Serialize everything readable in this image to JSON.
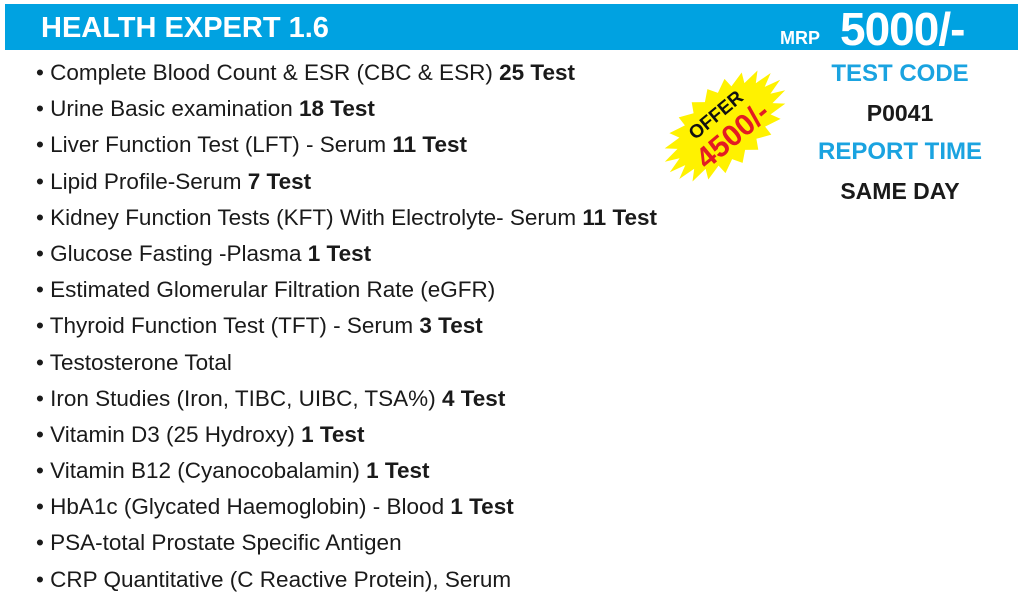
{
  "header": {
    "title": "HEALTH EXPERT 1.6",
    "mrp_label": "MRP",
    "mrp_value": "5000/-"
  },
  "offer": {
    "label": "OFFER",
    "price": "4500/-",
    "colors": {
      "burst": "#fff200",
      "price": "#e31b23"
    }
  },
  "tests": [
    {
      "name": "Complete Blood Count & ESR (CBC & ESR)",
      "count": "25 Test"
    },
    {
      "name": "Urine Basic examination",
      "count": "18 Test"
    },
    {
      "name": "Liver Function Test (LFT) - Serum",
      "count": "11 Test"
    },
    {
      "name": "Lipid Profile-Serum",
      "count": "7 Test"
    },
    {
      "name": "Kidney Function Tests (KFT) With Electrolyte- Serum",
      "count": "11 Test"
    },
    {
      "name": "Glucose Fasting -Plasma",
      "count": "1 Test"
    },
    {
      "name": "Estimated Glomerular Filtration Rate (eGFR)",
      "count": ""
    },
    {
      "name": "Thyroid Function Test (TFT) - Serum",
      "count": "3 Test"
    },
    {
      "name": "Testosterone Total",
      "count": ""
    },
    {
      "name": "Iron Studies (Iron, TIBC, UIBC, TSA%)",
      "count": "4 Test"
    },
    {
      "name": "Vitamin D3 (25 Hydroxy)",
      "count": "1 Test"
    },
    {
      "name": "Vitamin B12 (Cyanocobalamin)",
      "count": "1 Test"
    },
    {
      "name": "HbA1c (Glycated Haemoglobin) - Blood",
      "count": "1 Test"
    },
    {
      "name": "PSA-total Prostate Specific Antigen",
      "count": ""
    },
    {
      "name": "CRP Quantitative (C Reactive Protein), Serum",
      "count": ""
    }
  ],
  "info": {
    "test_code_label": "TEST CODE",
    "test_code": "P0041",
    "report_time_label": "REPORT TIME",
    "report_time": "SAME DAY"
  },
  "colors": {
    "header": "#00a2e1",
    "label_blue": "#1aa3e0"
  }
}
